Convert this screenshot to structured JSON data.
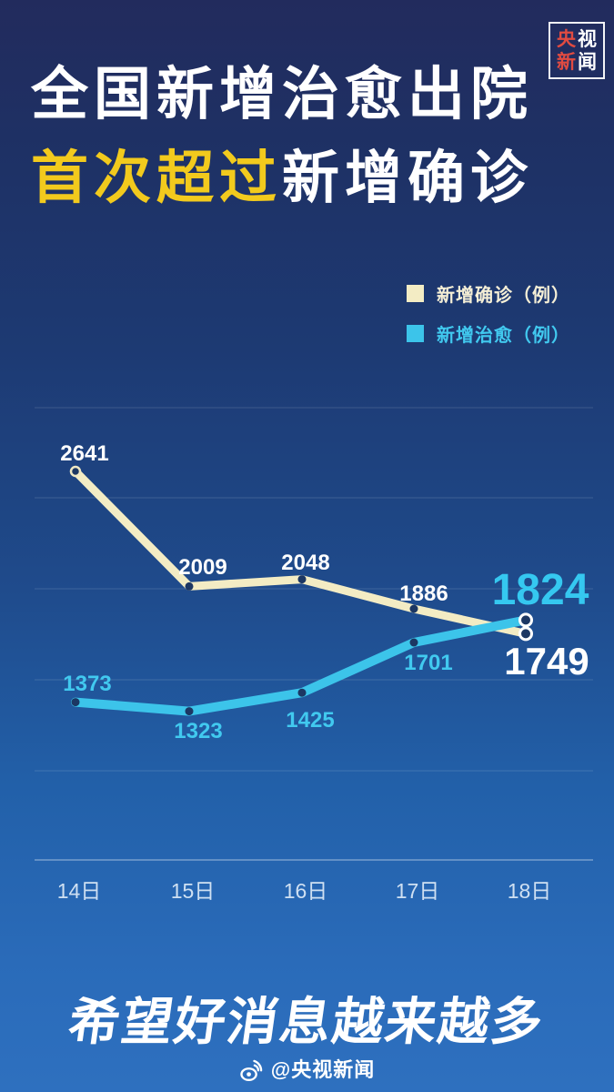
{
  "logo": {
    "line1_red": "央",
    "line1_white": "视",
    "line2_red": "新",
    "line2_white": "闻"
  },
  "title": {
    "line1": "全国新增治愈出院",
    "line2_highlight": "首次超过",
    "line2_rest": "新增确诊"
  },
  "legend": [
    {
      "label": "新增确诊（例）",
      "color": "#f3ecc4",
      "text_color": "#f5efd6"
    },
    {
      "label": "新增治愈（例）",
      "color": "#3cc4ea",
      "text_color": "#41c9ef"
    }
  ],
  "slogan": "希望好消息越来越多",
  "footer": {
    "icon": "weibo-icon",
    "handle": "@央视新闻"
  },
  "colors": {
    "background_top": "#222b5d",
    "background_bottom": "#2e70bf",
    "title_white": "#ffffff",
    "title_yellow": "#f2ca1d",
    "confirmed_line": "#f3ecc4",
    "cured_line": "#3cc4ea",
    "logo_red": "#e14b41",
    "dot_fill": "#1c3763",
    "grid_line": "rgba(255,255,255,0.14)"
  },
  "chart_data": {
    "type": "line",
    "categories": [
      "14日",
      "15日",
      "16日",
      "17日",
      "18日"
    ],
    "series": [
      {
        "name": "新增确诊（例）",
        "values": [
          2641,
          2009,
          2048,
          1886,
          1749
        ],
        "color": "#f3ecc4",
        "label_color": "#ffffff"
      },
      {
        "name": "新增治愈（例）",
        "values": [
          1373,
          1323,
          1425,
          1701,
          1824
        ],
        "color": "#3cc4ea",
        "label_color": "#41c9ef"
      }
    ],
    "title": "全国新增治愈出院首次超过新增确诊",
    "xlabel": "",
    "ylabel": "",
    "ylim": [
      1250,
      2750
    ],
    "grid": true,
    "legend_position": "top-right",
    "highlight_last_point": true
  }
}
